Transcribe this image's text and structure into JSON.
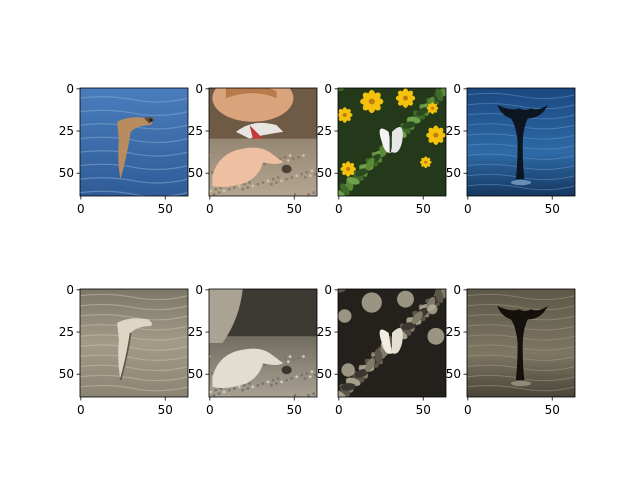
{
  "chart_data": {
    "type": "image-grid",
    "rows": 2,
    "cols": 4,
    "image_size": [
      64,
      64
    ],
    "xlim": [
      -0.5,
      63.5
    ],
    "ylim": [
      63.5,
      -0.5
    ],
    "xticks": [
      0,
      50
    ],
    "yticks": [
      0,
      25,
      50
    ],
    "panels": [
      {
        "row": 0,
        "col": 0,
        "content": "color photo: bird flying over blue water",
        "palette": {
          "bg": "#3e6fae",
          "accent": "#b58a5e"
        },
        "icon": "bird-icon"
      },
      {
        "row": 0,
        "col": 1,
        "content": "color photo: child reaching for a stone on gravel",
        "palette": {
          "bg": "#9f8f79",
          "accent": "#e9b99a"
        },
        "icon": "hand-icon"
      },
      {
        "row": 0,
        "col": 2,
        "content": "color photo: white butterfly among yellow flowers",
        "palette": {
          "bg": "#2c4a1f",
          "accent": "#f2c40a"
        },
        "icon": "butterfly-icon"
      },
      {
        "row": 0,
        "col": 3,
        "content": "color photo: whale tail above dark blue sea",
        "palette": {
          "bg": "#1f4e86",
          "accent": "#0e1a24"
        },
        "icon": "whale-tail-icon"
      },
      {
        "row": 1,
        "col": 0,
        "content": "sepia version: bird flying over water",
        "palette": {
          "bg": "#8e8776",
          "accent": "#d8d1c0"
        },
        "icon": "bird-icon"
      },
      {
        "row": 1,
        "col": 1,
        "content": "sepia version: child reaching for a stone",
        "palette": {
          "bg": "#6f6a5f",
          "accent": "#d4cfc2"
        },
        "icon": "hand-icon"
      },
      {
        "row": 1,
        "col": 2,
        "content": "sepia version: butterfly among flowers",
        "palette": {
          "bg": "#2d2a24",
          "accent": "#e9e4d8"
        },
        "icon": "butterfly-icon"
      },
      {
        "row": 1,
        "col": 3,
        "content": "sepia version: whale tail above sea",
        "palette": {
          "bg": "#6a6352",
          "accent": "#161310"
        },
        "icon": "whale-tail-icon"
      }
    ]
  }
}
